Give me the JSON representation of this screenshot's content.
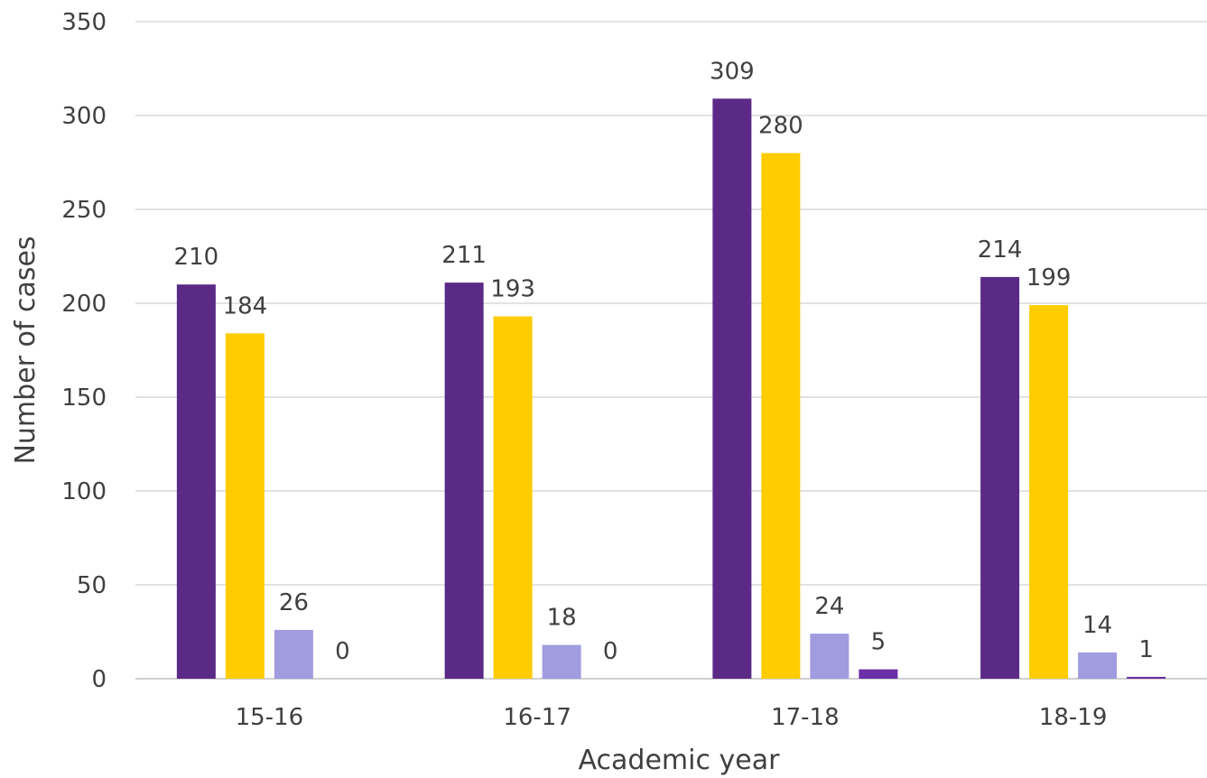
{
  "chart_data": {
    "type": "bar",
    "title": "",
    "xlabel": "Academic year",
    "ylabel": "Number of cases",
    "ylim": [
      0,
      350
    ],
    "yticks": [
      0,
      50,
      100,
      150,
      200,
      250,
      300,
      350
    ],
    "grid": true,
    "legend": "none",
    "categories": [
      "15-16",
      "16-17",
      "17-18",
      "18-19"
    ],
    "series": [
      {
        "color": "#5b2a86",
        "values": [
          210,
          211,
          309,
          214
        ]
      },
      {
        "color": "#ffcc00",
        "values": [
          184,
          193,
          280,
          199
        ]
      },
      {
        "color": "#a09cdf",
        "values": [
          26,
          18,
          24,
          14
        ]
      },
      {
        "color": "#6b2fa8",
        "values": [
          0,
          0,
          5,
          1
        ]
      }
    ]
  }
}
